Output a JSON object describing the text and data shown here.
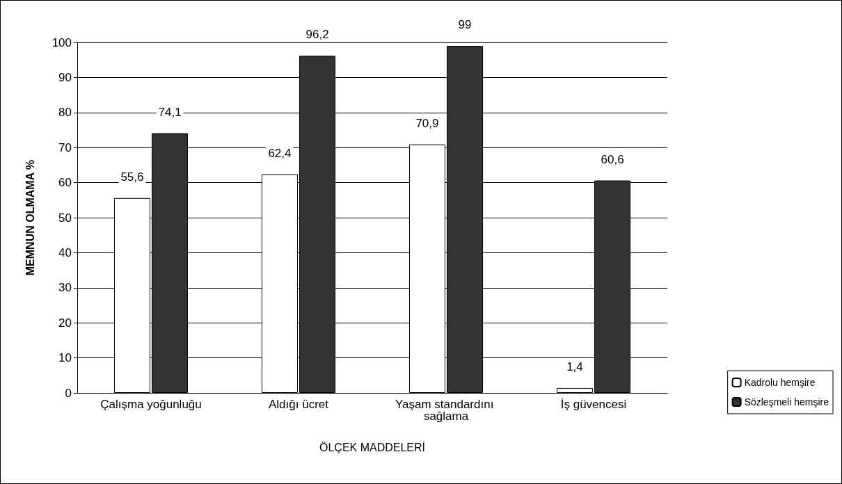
{
  "chart_data": {
    "type": "bar",
    "xlabel": "ÖLÇEK MADDELERİ",
    "ylabel": "MEMNUN OLMAMA %",
    "categories": [
      "Çalışma yoğunluğu",
      "Aldığı ücret",
      "Yaşam standardını sağlama",
      "İş güvencesi"
    ],
    "series": [
      {
        "name": "Kadrolu hemşire",
        "color": "#ffffff",
        "values": [
          55.6,
          62.4,
          70.9,
          1.4
        ],
        "value_labels": [
          "55,6",
          "62,4",
          "70,9",
          "1,4"
        ]
      },
      {
        "name": "Sözleşmeli hemşire",
        "color": "#333333",
        "values": [
          74.1,
          96.2,
          99,
          60.6
        ],
        "value_labels": [
          "74,1",
          "96,2",
          "99",
          "60,6"
        ]
      }
    ],
    "ylim": [
      0,
      100
    ],
    "yticks": [
      0,
      10,
      20,
      30,
      40,
      50,
      60,
      70,
      80,
      90,
      100
    ],
    "grid": "y",
    "legend": "bottom right"
  }
}
